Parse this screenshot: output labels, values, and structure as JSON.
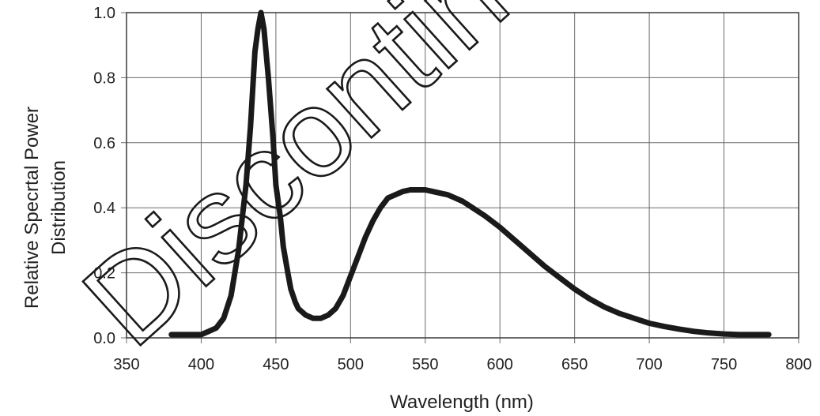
{
  "watermark": "Discontinued",
  "chart_data": {
    "type": "line",
    "xlabel": "Wavelength (nm)",
    "ylabel_lines": [
      "Relative Specrtal Power",
      "Distribution"
    ],
    "xlim": [
      350,
      800
    ],
    "ylim": [
      0,
      1.0
    ],
    "x_ticks": [
      350,
      400,
      450,
      500,
      550,
      600,
      650,
      700,
      750,
      800
    ],
    "y_ticks": [
      "0.0",
      "0.2",
      "0.4",
      "0.6",
      "0.8",
      "1.0"
    ],
    "y_tick_values": [
      0,
      0.2,
      0.4,
      0.6,
      0.8,
      1.0
    ],
    "grid": true,
    "series": [
      {
        "color": "#1a1a1a",
        "x": [
          380,
          390,
          395,
          400,
          405,
          410,
          415,
          420,
          425,
          430,
          433,
          436,
          438,
          440,
          442,
          445,
          448,
          450,
          453,
          455,
          458,
          460,
          463,
          465,
          470,
          475,
          480,
          485,
          490,
          495,
          500,
          505,
          510,
          515,
          520,
          525,
          530,
          535,
          540,
          545,
          550,
          555,
          560,
          565,
          570,
          575,
          580,
          590,
          600,
          610,
          620,
          630,
          640,
          650,
          660,
          670,
          680,
          690,
          700,
          710,
          720,
          730,
          740,
          750,
          760,
          770,
          780
        ],
        "y": [
          0.01,
          0.01,
          0.01,
          0.01,
          0.02,
          0.03,
          0.06,
          0.13,
          0.27,
          0.47,
          0.65,
          0.88,
          0.95,
          1.0,
          0.95,
          0.8,
          0.62,
          0.47,
          0.37,
          0.28,
          0.2,
          0.15,
          0.11,
          0.09,
          0.07,
          0.06,
          0.06,
          0.07,
          0.09,
          0.13,
          0.19,
          0.25,
          0.31,
          0.36,
          0.4,
          0.43,
          0.44,
          0.45,
          0.455,
          0.455,
          0.455,
          0.45,
          0.445,
          0.44,
          0.43,
          0.42,
          0.405,
          0.375,
          0.34,
          0.3,
          0.26,
          0.22,
          0.185,
          0.15,
          0.12,
          0.095,
          0.075,
          0.06,
          0.045,
          0.035,
          0.027,
          0.02,
          0.015,
          0.012,
          0.01,
          0.01,
          0.01
        ]
      }
    ]
  }
}
